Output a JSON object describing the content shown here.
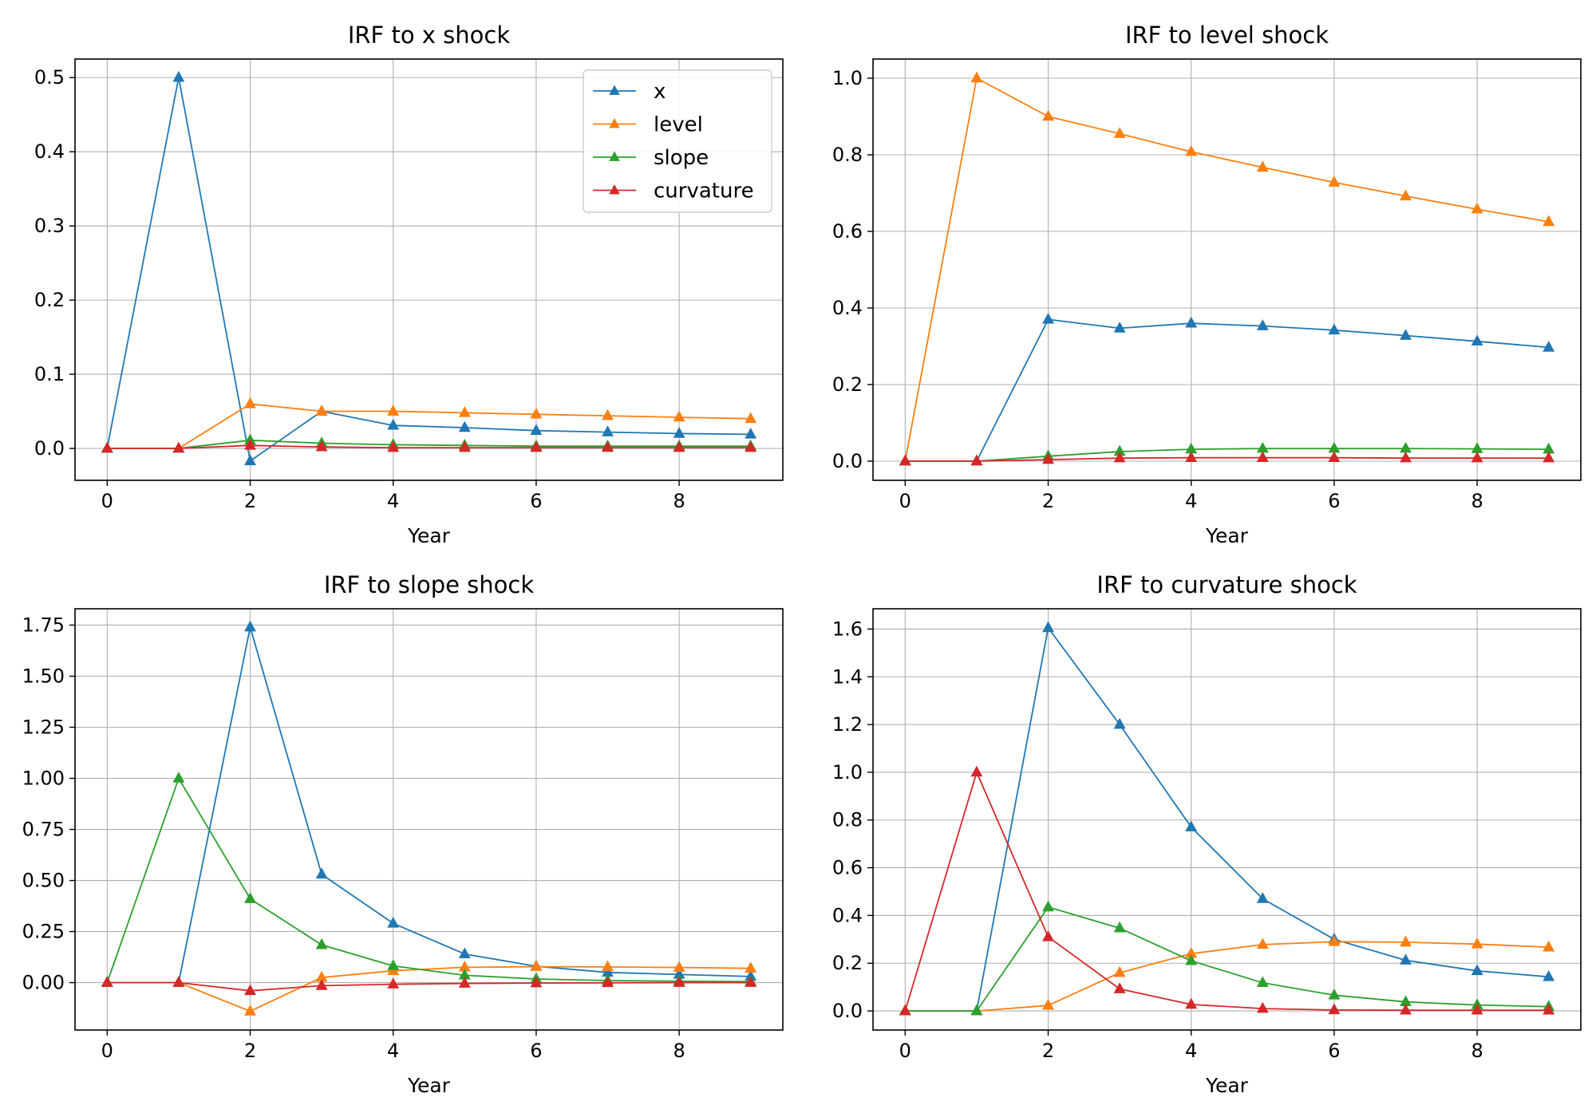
{
  "chart_data": [
    {
      "type": "line",
      "title": "IRF to x shock",
      "xlabel": "Year",
      "ylabel": "",
      "x": [
        0,
        1,
        2,
        3,
        4,
        5,
        6,
        7,
        8,
        9
      ],
      "xlim": [
        -0.45,
        9.45
      ],
      "ylim": [
        -0.043,
        0.525
      ],
      "xticks": [
        0,
        2,
        4,
        6,
        8
      ],
      "yticks": [
        0.0,
        0.1,
        0.2,
        0.3,
        0.4,
        0.5
      ],
      "ytick_labels": [
        "0.0",
        "0.1",
        "0.2",
        "0.3",
        "0.4",
        "0.5"
      ],
      "grid": true,
      "legend": "top-right",
      "series": [
        {
          "name": "x",
          "values": [
            0,
            0.5,
            -0.017,
            0.05,
            0.031,
            0.028,
            0.024,
            0.022,
            0.02,
            0.019
          ]
        },
        {
          "name": "level",
          "values": [
            0,
            0,
            0.06,
            0.05,
            0.05,
            0.048,
            0.046,
            0.044,
            0.042,
            0.04
          ]
        },
        {
          "name": "slope",
          "values": [
            0,
            0,
            0.011,
            0.007,
            0.005,
            0.004,
            0.003,
            0.003,
            0.003,
            0.003
          ]
        },
        {
          "name": "curvature",
          "values": [
            0,
            0,
            0.004,
            0.002,
            0.001,
            0.001,
            0.001,
            0.001,
            0.001,
            0.001
          ]
        }
      ]
    },
    {
      "type": "line",
      "title": "IRF to level shock",
      "xlabel": "Year",
      "ylabel": "",
      "x": [
        0,
        1,
        2,
        3,
        4,
        5,
        6,
        7,
        8,
        9
      ],
      "xlim": [
        -0.45,
        9.45
      ],
      "ylim": [
        -0.05,
        1.05
      ],
      "xticks": [
        0,
        2,
        4,
        6,
        8
      ],
      "yticks": [
        0.0,
        0.2,
        0.4,
        0.6,
        0.8,
        1.0
      ],
      "ytick_labels": [
        "0.0",
        "0.2",
        "0.4",
        "0.6",
        "0.8",
        "1.0"
      ],
      "grid": true,
      "legend": "",
      "series": [
        {
          "name": "x",
          "values": [
            0,
            0,
            0.37,
            0.347,
            0.36,
            0.353,
            0.342,
            0.328,
            0.313,
            0.297
          ]
        },
        {
          "name": "level",
          "values": [
            0,
            1.0,
            0.9,
            0.855,
            0.808,
            0.767,
            0.728,
            0.692,
            0.658,
            0.625
          ]
        },
        {
          "name": "slope",
          "values": [
            0,
            0,
            0.013,
            0.025,
            0.031,
            0.033,
            0.033,
            0.033,
            0.032,
            0.031
          ]
        },
        {
          "name": "curvature",
          "values": [
            0,
            0,
            0.004,
            0.008,
            0.009,
            0.009,
            0.009,
            0.008,
            0.008,
            0.008
          ]
        }
      ]
    },
    {
      "type": "line",
      "title": "IRF to slope shock",
      "xlabel": "Year",
      "ylabel": "",
      "x": [
        0,
        1,
        2,
        3,
        4,
        5,
        6,
        7,
        8,
        9
      ],
      "xlim": [
        -0.45,
        9.45
      ],
      "ylim": [
        -0.232,
        1.83
      ],
      "xticks": [
        0,
        2,
        4,
        6,
        8
      ],
      "yticks": [
        0.0,
        0.25,
        0.5,
        0.75,
        1.0,
        1.25,
        1.5,
        1.75
      ],
      "ytick_labels": [
        "0.00",
        "0.25",
        "0.50",
        "0.75",
        "1.00",
        "1.25",
        "1.50",
        "1.75"
      ],
      "grid": true,
      "legend": "",
      "series": [
        {
          "name": "x",
          "values": [
            0,
            0,
            1.74,
            0.53,
            0.29,
            0.14,
            0.08,
            0.05,
            0.04,
            0.03
          ]
        },
        {
          "name": "level",
          "values": [
            0,
            0,
            -0.14,
            0.025,
            0.058,
            0.075,
            0.078,
            0.077,
            0.074,
            0.07
          ]
        },
        {
          "name": "slope",
          "values": [
            0,
            1.0,
            0.41,
            0.185,
            0.082,
            0.036,
            0.018,
            0.01,
            0.007,
            0.005
          ]
        },
        {
          "name": "curvature",
          "values": [
            0,
            0,
            -0.04,
            -0.015,
            -0.008,
            -0.004,
            -0.002,
            -0.001,
            0,
            0
          ]
        }
      ]
    },
    {
      "type": "line",
      "title": "IRF to curvature shock",
      "xlabel": "Year",
      "ylabel": "",
      "x": [
        0,
        1,
        2,
        3,
        4,
        5,
        6,
        7,
        8,
        9
      ],
      "xlim": [
        -0.45,
        9.45
      ],
      "ylim": [
        -0.08,
        1.685
      ],
      "xticks": [
        0,
        2,
        4,
        6,
        8
      ],
      "yticks": [
        0.0,
        0.2,
        0.4,
        0.6,
        0.8,
        1.0,
        1.2,
        1.4,
        1.6
      ],
      "ytick_labels": [
        "0.0",
        "0.2",
        "0.4",
        "0.6",
        "0.8",
        "1.0",
        "1.2",
        "1.4",
        "1.6"
      ],
      "grid": true,
      "legend": "",
      "series": [
        {
          "name": "x",
          "values": [
            0,
            0,
            1.605,
            1.2,
            0.77,
            0.47,
            0.3,
            0.212,
            0.168,
            0.143
          ]
        },
        {
          "name": "level",
          "values": [
            0,
            0,
            0.023,
            0.16,
            0.24,
            0.278,
            0.29,
            0.288,
            0.28,
            0.267
          ]
        },
        {
          "name": "slope",
          "values": [
            0,
            0,
            0.435,
            0.347,
            0.21,
            0.118,
            0.066,
            0.038,
            0.025,
            0.018
          ]
        },
        {
          "name": "curvature",
          "values": [
            0,
            1.0,
            0.31,
            0.092,
            0.027,
            0.01,
            0.004,
            0.003,
            0.003,
            0.003
          ]
        }
      ]
    }
  ],
  "colors": {
    "x": "#1f77b4",
    "level": "#ff7f0e",
    "slope": "#2ca02c",
    "curvature": "#d62728",
    "grid": "#b0b0b0",
    "axes": "#000000"
  }
}
